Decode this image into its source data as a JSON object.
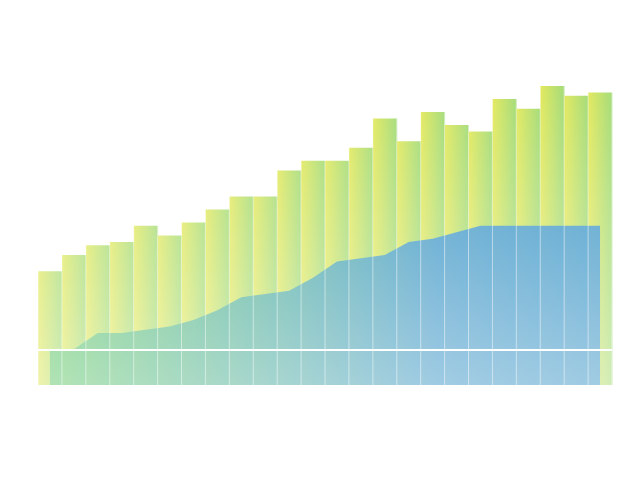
{
  "chart_data": {
    "type": "bar",
    "ylim": [
      0,
      100
    ],
    "series": [
      {
        "color": "#dde43a",
        "values": [
          35,
          40,
          43,
          44,
          49,
          46,
          50,
          54,
          58,
          58,
          66,
          69,
          69,
          73,
          82,
          75,
          84,
          80,
          78,
          88,
          85,
          92,
          89,
          90
        ]
      },
      {
        "color": "#2a8bd8",
        "values": [
          11,
          11,
          16,
          16,
          17,
          18,
          20,
          23,
          27,
          28,
          29,
          33,
          38,
          39,
          40,
          44,
          45,
          47,
          49,
          49,
          49,
          49,
          49,
          49
        ]
      }
    ]
  }
}
